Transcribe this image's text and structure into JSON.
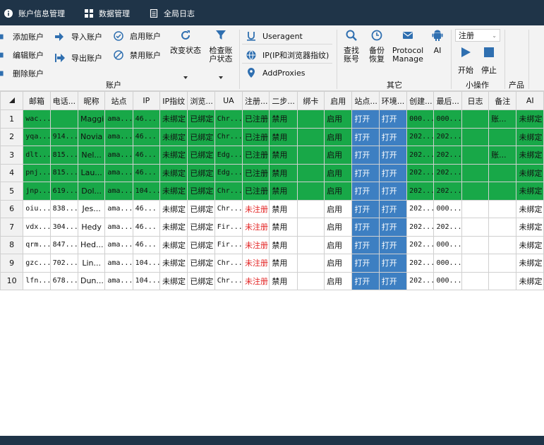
{
  "topbar": {
    "tabs": [
      {
        "label": "账户信息管理",
        "icon": "info-icon"
      },
      {
        "label": "数据管理",
        "icon": "grid-icon"
      },
      {
        "label": "全局日志",
        "icon": "document-icon"
      }
    ]
  },
  "ribbon": {
    "account": {
      "group_label": "账户",
      "add": "添加账户",
      "edit": "编辑账户",
      "delete": "删除账户",
      "import": "导入账户",
      "export": "导出账户",
      "enable": "启用账户",
      "disable": "禁用账户",
      "change_status": "改变状态",
      "check_status": "检查账户状态"
    },
    "other": {
      "group_label": "其它",
      "useragent": "Useragent",
      "ip": "IP(IP和浏览器指纹)",
      "addproxies": "AddProxies",
      "find": "查找账号",
      "backup": "备份恢复",
      "protocol": "Protocol Manage",
      "ai": "AI"
    },
    "small_ops": {
      "group_label": "小操作",
      "select_value": "注册",
      "start": "开始",
      "stop": "停止"
    },
    "product": {
      "group_label": "产品"
    }
  },
  "table": {
    "headers": [
      "",
      "邮箱",
      "电话...",
      "昵称",
      "站点",
      "IP",
      "IP指纹",
      "浏览...",
      "UA",
      "注册...",
      "二步...",
      "绑卡",
      "启用",
      "站点...",
      "环境...",
      "创建...",
      "最后...",
      "日志",
      "备注",
      "AI"
    ],
    "rows": [
      [
        "1",
        "wac...",
        "",
        "Maggie",
        "ama...",
        "46...",
        "未绑定",
        "已绑定",
        "Chr...",
        "已注册",
        "禁用",
        "",
        "启用",
        "打开",
        "打开",
        "000...",
        "000...",
        "",
        "账...",
        "未绑定"
      ],
      [
        "2",
        "yqa...",
        "914...",
        "Novia",
        "ama...",
        "46...",
        "未绑定",
        "已绑定",
        "Chr...",
        "已注册",
        "禁用",
        "",
        "启用",
        "打开",
        "打开",
        "202...",
        "202...",
        "",
        "",
        "未绑定"
      ],
      [
        "3",
        "dlt...",
        "815...",
        "Nel...",
        "ama...",
        "46...",
        "未绑定",
        "已绑定",
        "Edg...",
        "已注册",
        "禁用",
        "",
        "启用",
        "打开",
        "打开",
        "202...",
        "202...",
        "",
        "账...",
        "未绑定"
      ],
      [
        "4",
        "pnj...",
        "815...",
        "Lau...",
        "ama...",
        "46...",
        "未绑定",
        "已绑定",
        "Edg...",
        "已注册",
        "禁用",
        "",
        "启用",
        "打开",
        "打开",
        "202...",
        "202...",
        "",
        "",
        "未绑定"
      ],
      [
        "5",
        "jnp...",
        "619...",
        "Dol...",
        "ama...",
        "104...",
        "未绑定",
        "已绑定",
        "Chr...",
        "已注册",
        "禁用",
        "",
        "启用",
        "打开",
        "打开",
        "202...",
        "202...",
        "",
        "",
        "未绑定"
      ],
      [
        "6",
        "oiu...",
        "838...",
        "Jes...",
        "ama...",
        "46...",
        "未绑定",
        "已绑定",
        "Chr...",
        "未注册",
        "禁用",
        "",
        "启用",
        "打开",
        "打开",
        "202...",
        "000...",
        "",
        "",
        "未绑定"
      ],
      [
        "7",
        "vdx...",
        "304...",
        "Hedy",
        "ama...",
        "46...",
        "未绑定",
        "已绑定",
        "Fir...",
        "未注册",
        "禁用",
        "",
        "启用",
        "打开",
        "打开",
        "202...",
        "202...",
        "",
        "",
        "未绑定"
      ],
      [
        "8",
        "qrm...",
        "847...",
        "Hed...",
        "ama...",
        "46...",
        "未绑定",
        "已绑定",
        "Fir...",
        "未注册",
        "禁用",
        "",
        "启用",
        "打开",
        "打开",
        "202...",
        "000...",
        "",
        "",
        "未绑定"
      ],
      [
        "9",
        "gzc...",
        "702...",
        "Lin...",
        "ama...",
        "104...",
        "未绑定",
        "已绑定",
        "Chr...",
        "未注册",
        "禁用",
        "",
        "启用",
        "打开",
        "打开",
        "202...",
        "000...",
        "",
        "",
        "未绑定"
      ],
      [
        "10",
        "lfn...",
        "678...",
        "Dun...",
        "ama...",
        "104...",
        "未绑定",
        "已绑定",
        "Chr...",
        "未注册",
        "禁用",
        "",
        "启用",
        "打开",
        "打开",
        "202...",
        "000...",
        "",
        "",
        "未绑定"
      ]
    ],
    "highlighted_rows": 5
  },
  "colors": {
    "titlebar": "#1f3448",
    "row_highlight": "#18a848",
    "button_cell": "#3d7fc2",
    "unregistered_text": "#e32222",
    "icon_blue": "#2f6fb0"
  }
}
